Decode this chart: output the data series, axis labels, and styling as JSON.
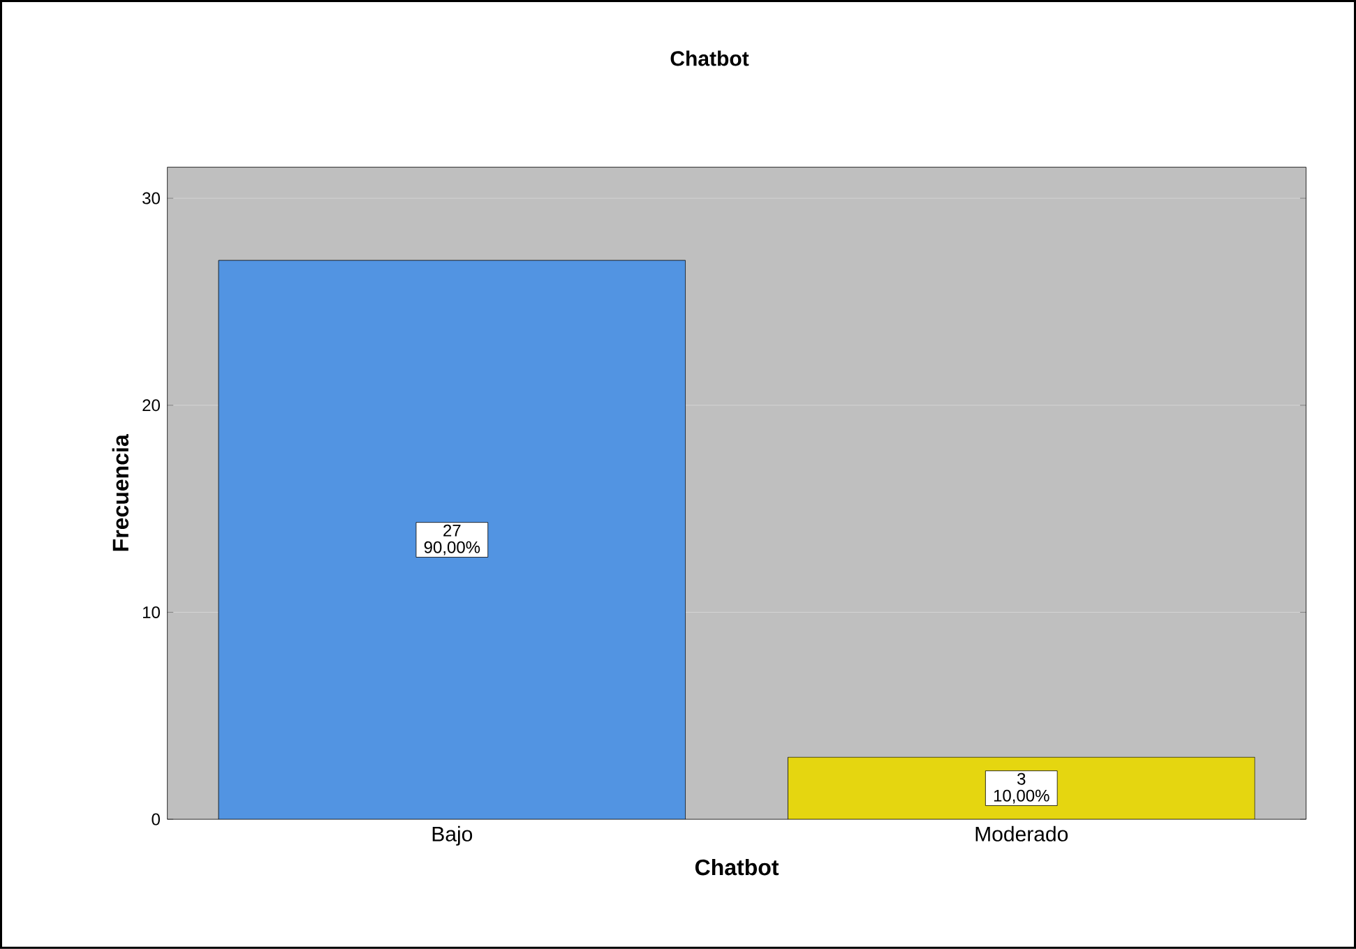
{
  "chart_data": {
    "type": "bar",
    "title": "Chatbot",
    "xlabel": "Chatbot",
    "ylabel": "Frecuencia",
    "categories": [
      "Bajo",
      "Moderado"
    ],
    "values": [
      27,
      3
    ],
    "colors": [
      "#5294e2",
      "#e5d610"
    ],
    "value_labels": [
      "27 90,00%",
      "3 10,00%"
    ],
    "ylim": [
      0,
      31.5
    ],
    "yticks": [
      0,
      10,
      20,
      30
    ],
    "grid": "y"
  }
}
